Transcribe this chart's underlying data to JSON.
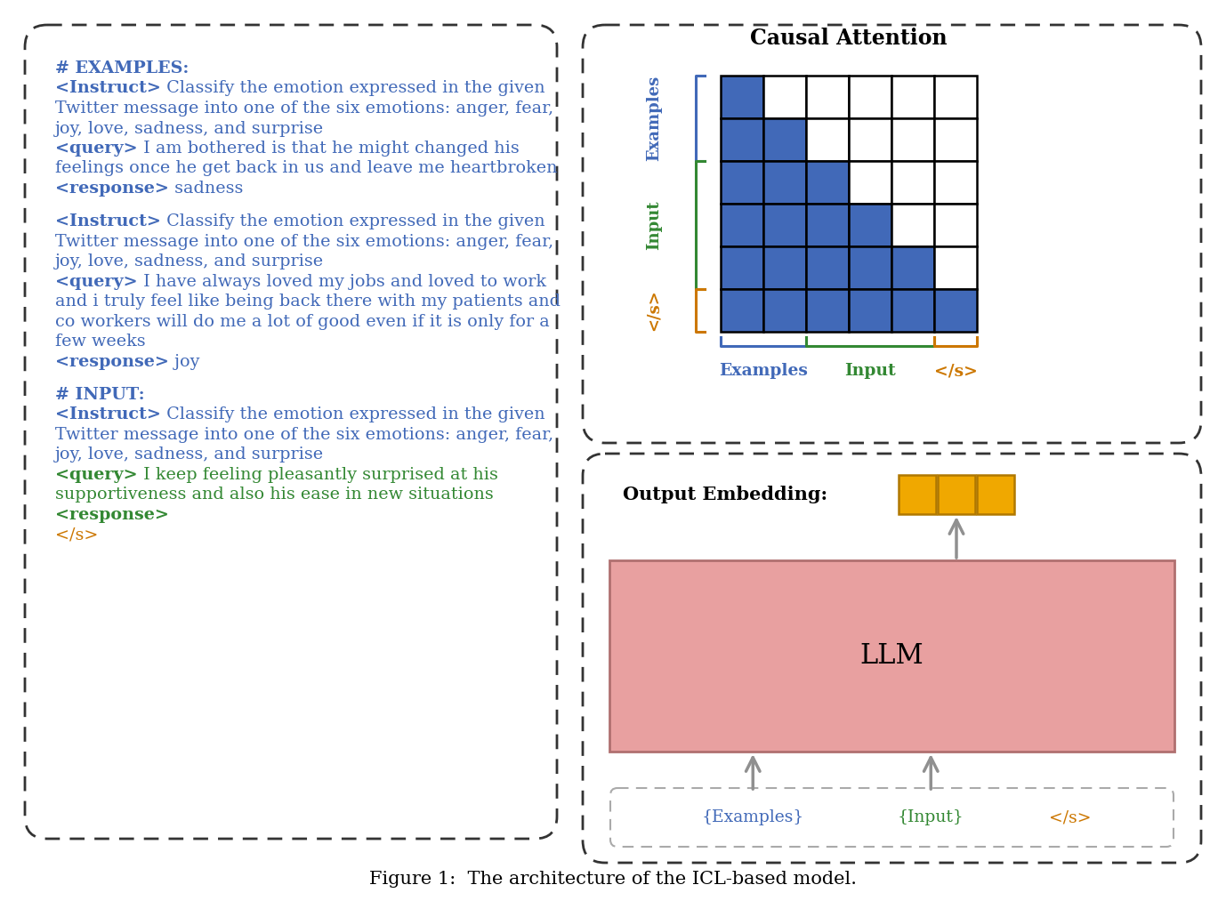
{
  "bg_color": "#ffffff",
  "title": "Figure 1:  The architecture of the ICL-based model.",
  "blue": "#4169B8",
  "green": "#338833",
  "orange": "#CC7700",
  "black": "#000000",
  "causal_title": "Causal Attention",
  "causal_grid": {
    "n_rows": 6,
    "n_cols": 6,
    "filled_color": "#4169B8",
    "pattern": [
      [
        1,
        0,
        0,
        0,
        0,
        0
      ],
      [
        1,
        1,
        0,
        0,
        0,
        0
      ],
      [
        1,
        1,
        1,
        0,
        0,
        0
      ],
      [
        1,
        1,
        1,
        1,
        0,
        0
      ],
      [
        1,
        1,
        1,
        1,
        1,
        0
      ],
      [
        1,
        1,
        1,
        1,
        1,
        1
      ]
    ],
    "examples_rows": 2,
    "input_rows": 3,
    "slash_s_rows": 1
  },
  "llm_box_color": "#E8A0A0",
  "llm_box_border": "#B07070",
  "output_embed_color": "#F0A800",
  "output_embed_border": "#B07800",
  "arrow_color": "#909090",
  "dashed_color": "#AAAAAA"
}
